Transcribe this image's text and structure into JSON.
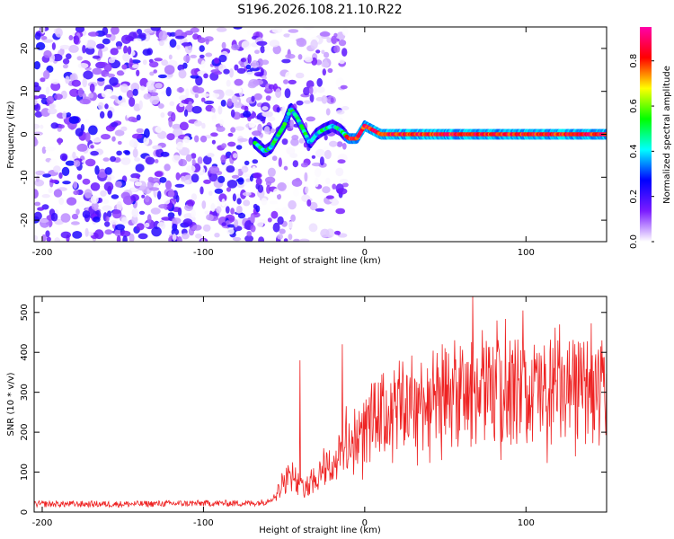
{
  "title": "S196.2026.108.21.10.R22",
  "chart_data": [
    {
      "type": "heatmap",
      "name": "spectrogram",
      "xlabel": "Height of straight line (km)",
      "ylabel": "Frequency (Hz)",
      "xlim": [
        -205,
        150
      ],
      "ylim": [
        -25,
        25
      ],
      "xticks": [
        -200,
        -100,
        0,
        100
      ],
      "xtick_labels": [
        "-200",
        "-100",
        "0",
        "100"
      ],
      "yticks": [
        -20,
        -10,
        0,
        10,
        20
      ],
      "ytick_labels": [
        "-20",
        "-10",
        "0",
        "10",
        "20"
      ],
      "colorbar": {
        "label": "Normalized spectral amplitude",
        "range": [
          0,
          0.95
        ],
        "ticks": [
          0,
          0.2,
          0.4,
          0.6,
          0.8
        ],
        "tick_labels": [
          "0.0",
          "0.2",
          "0.4",
          "0.6",
          "0.8"
        ],
        "colors": [
          "#ffffff",
          "#7b1cff",
          "#0000ff",
          "#00ffff",
          "#00ff00",
          "#ffff00",
          "#ff0000",
          "#ff00aa"
        ]
      },
      "regions": [
        {
          "x_range": [
            -205,
            -62
          ],
          "description": "broadband noise",
          "amplitude": 0.05
        },
        {
          "x_range": [
            -62,
            -12
          ],
          "description": "transition, scattered energy",
          "amplitude": 0.2
        },
        {
          "x_range": [
            -12,
            150
          ],
          "description": "narrow band near 0 Hz",
          "amplitude": 0.9
        }
      ],
      "track": {
        "x": [
          -68,
          -62,
          -58,
          -55,
          -50,
          -46,
          -42,
          -38,
          -34,
          -30,
          -26,
          -20,
          -15,
          -10,
          -5,
          0,
          5,
          10,
          20,
          40,
          60,
          80,
          100,
          120,
          150
        ],
        "y": [
          -2,
          -4,
          -3,
          -1,
          2,
          6,
          4,
          1,
          -2,
          0,
          1,
          2,
          1,
          -1,
          -1,
          2,
          1,
          0,
          0,
          0,
          0,
          0,
          0,
          0,
          0
        ]
      }
    },
    {
      "type": "line",
      "name": "snr",
      "xlabel": "Height of straight line (km)",
      "ylabel": "SNR (10 * v/v)",
      "xlim": [
        -205,
        150
      ],
      "ylim": [
        0,
        540
      ],
      "xticks": [
        -200,
        -100,
        0,
        100
      ],
      "xtick_labels": [
        "-200",
        "-100",
        "0",
        "100"
      ],
      "yticks": [
        0,
        100,
        200,
        300,
        400,
        500
      ],
      "ytick_labels": [
        "0",
        "100",
        "200",
        "300",
        "400",
        "500"
      ],
      "color": "#ee2222",
      "envelope": {
        "x": [
          -205,
          -150,
          -100,
          -70,
          -62,
          -55,
          -50,
          -45,
          -40,
          -35,
          -30,
          -25,
          -20,
          -15,
          -10,
          -5,
          0,
          5,
          10,
          15,
          20,
          30,
          40,
          50,
          60,
          70,
          80,
          90,
          100,
          110,
          120,
          130,
          140,
          150
        ],
        "y": [
          20,
          20,
          22,
          22,
          25,
          40,
          80,
          95,
          60,
          70,
          90,
          110,
          120,
          140,
          180,
          180,
          200,
          230,
          240,
          250,
          260,
          270,
          280,
          285,
          290,
          300,
          300,
          305,
          300,
          300,
          300,
          295,
          300,
          300
        ]
      },
      "peaks": [
        {
          "x": -40,
          "y": 380
        },
        {
          "x": -14,
          "y": 420
        },
        {
          "x": 48,
          "y": 420
        },
        {
          "x": 67,
          "y": 540
        },
        {
          "x": 82,
          "y": 480
        },
        {
          "x": 98,
          "y": 505
        },
        {
          "x": 121,
          "y": 470
        },
        {
          "x": 147,
          "y": 430
        }
      ]
    }
  ]
}
